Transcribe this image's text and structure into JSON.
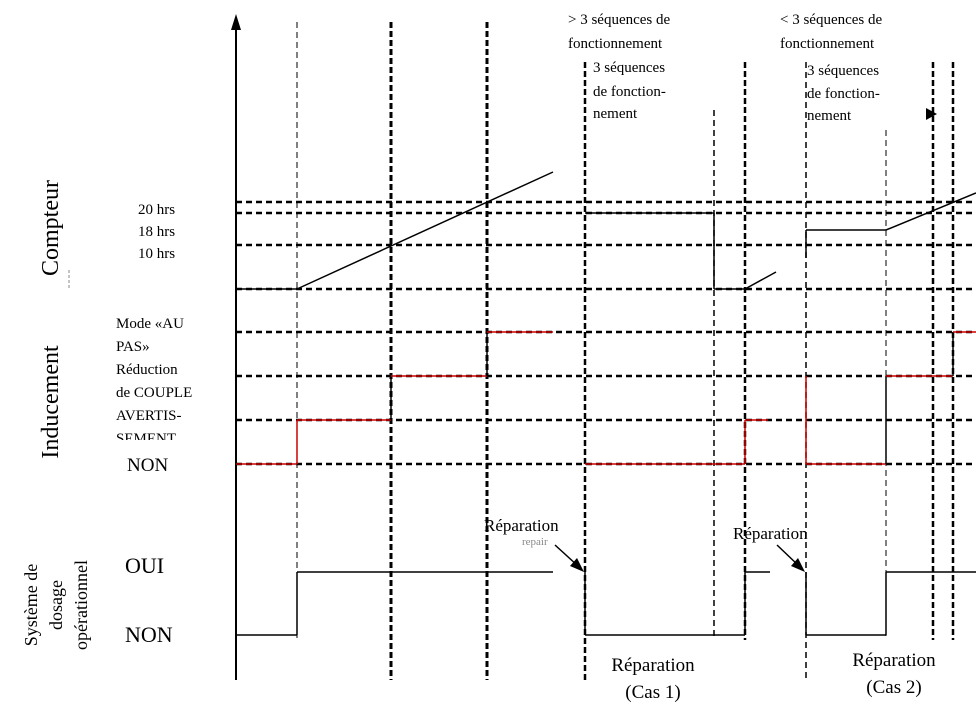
{
  "annotations": {
    "case1_top": [
      "> 3 séquences de",
      "fonctionnement"
    ],
    "case1_sub": [
      "3 séquences",
      "de fonction-",
      "nement"
    ],
    "case2_top": [
      "< 3 séquences de",
      "fonctionnement"
    ],
    "case2_sub": [
      "3 séquences",
      "de fonction-",
      "nement"
    ]
  },
  "counter": {
    "axis_label": "Compteur",
    "levels": [
      "20 hrs",
      "18 hrs",
      "10 hrs"
    ]
  },
  "inducement": {
    "axis_label": "Inducement",
    "levels": {
      "step_mode": [
        "Mode «AU",
        "PAS»"
      ],
      "torque_reduction": [
        "Réduction",
        "de COUPLE"
      ],
      "warning": [
        "AVERTIS-",
        "SEMENT"
      ],
      "off": "NON"
    }
  },
  "dosing": {
    "axis_label": [
      "Système de",
      "dosage",
      "opérationnel"
    ],
    "yes": "OUI",
    "no": "NON"
  },
  "repair_labels": {
    "case1_arrow": "Réparation",
    "case1_faint": "repair",
    "case2_arrow": "Réparation"
  },
  "bottom_labels": {
    "case1": [
      "Réparation",
      "(Cas 1)"
    ],
    "case2": [
      "Réparation",
      "(Cas 2)"
    ]
  },
  "colors": {
    "line": "#000000",
    "inducement_level": "#cc0000",
    "faint_text": "#888888"
  }
}
